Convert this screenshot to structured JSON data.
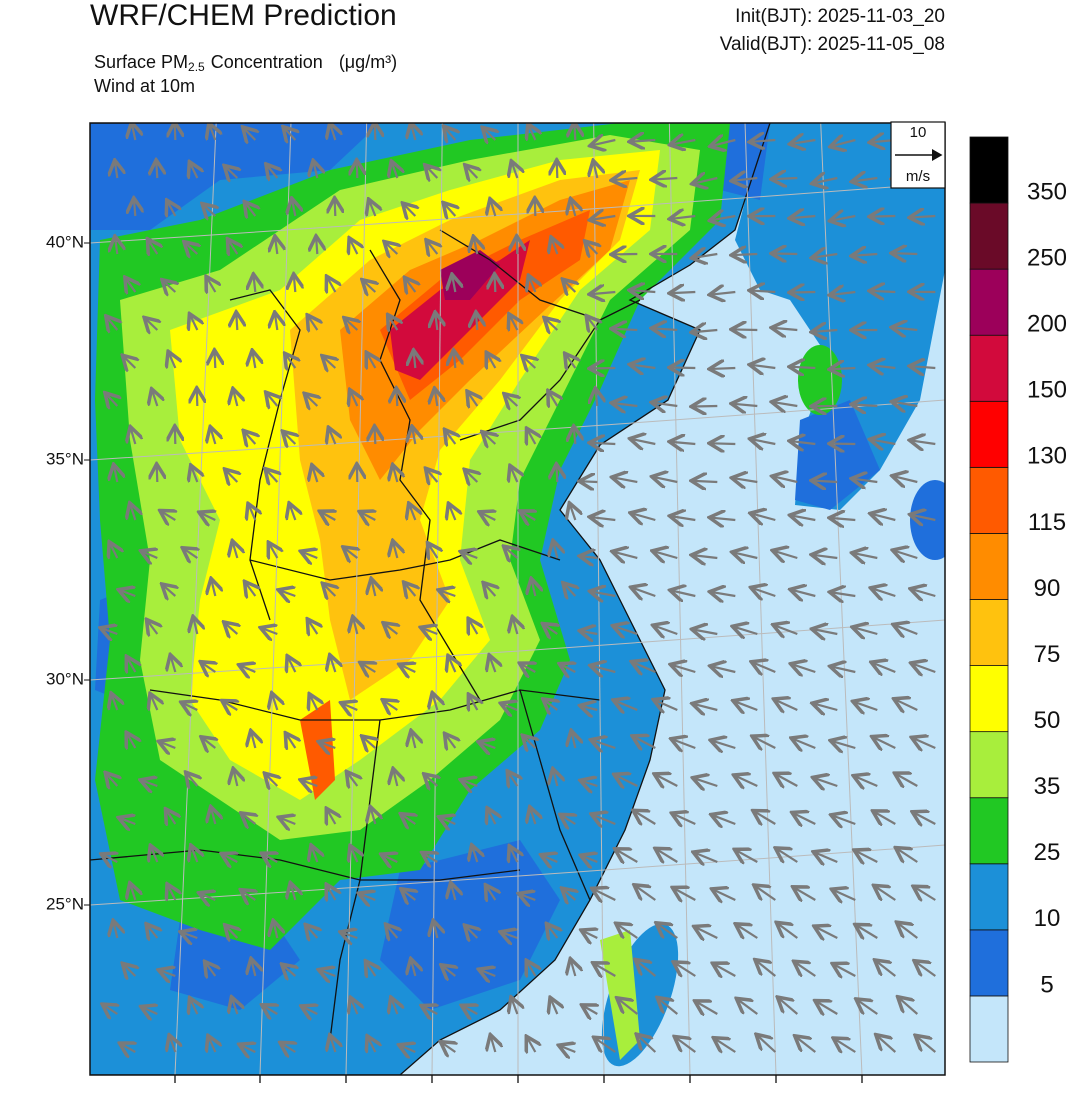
{
  "header": {
    "title": "WRF/CHEM Prediction",
    "subtitle": {
      "text": "Surface PM",
      "subscript": "2.5",
      "rest": "Concentration",
      "units": "(μg/m³)"
    },
    "wind_label": "Wind at 10m",
    "init": "Init(BJT): 2025-11-03_20",
    "valid": "Valid(BJT): 2025-11-05_08"
  },
  "wind_key": {
    "speed": "10",
    "unit": "m/s"
  },
  "latitude_labels": [
    "40°N",
    "35°N",
    "30°N",
    "25°N"
  ],
  "colorbar": {
    "labels": [
      "5",
      "10",
      "25",
      "35",
      "50",
      "75",
      "90",
      "115",
      "130",
      "150",
      "200",
      "250",
      "350"
    ],
    "colors": [
      "#c4e6fa",
      "#1f6fdc",
      "#1c90d8",
      "#21c823",
      "#a8ee3c",
      "#ffff00",
      "#ffc20e",
      "#ff8c00",
      "#ff5a00",
      "#ff0000",
      "#d20a3c",
      "#9c005a",
      "#6a0a28",
      "#000000"
    ]
  }
}
